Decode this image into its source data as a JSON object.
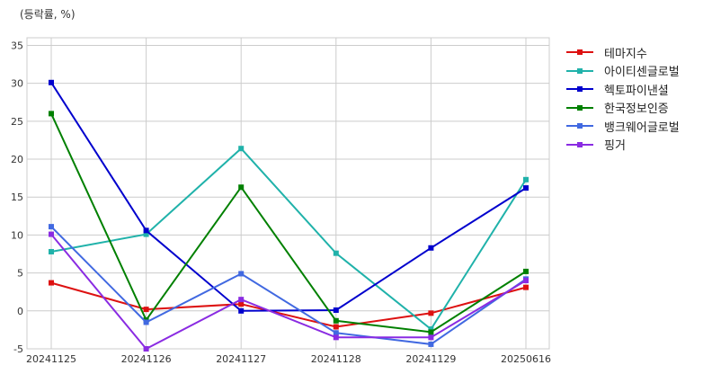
{
  "chart_data": {
    "type": "line",
    "title": "",
    "ylabel": "(등락률, %)",
    "xlabel": "",
    "categories": [
      "20241125",
      "20241126",
      "20241127",
      "20241128",
      "20241129",
      "20250616"
    ],
    "ylim": [
      -5,
      36
    ],
    "yticks": [
      -5,
      0,
      5,
      10,
      15,
      20,
      25,
      30,
      35
    ],
    "grid": true,
    "legend_position": "right",
    "series": [
      {
        "name": "테마지수",
        "color": "#dd1111",
        "values": [
          3.7,
          0.2,
          0.9,
          -2.1,
          -0.3,
          3.1
        ]
      },
      {
        "name": "아이티센글로벌",
        "color": "#20b2aa",
        "values": [
          7.8,
          10.1,
          21.4,
          7.6,
          -2.4,
          17.3
        ]
      },
      {
        "name": "헥토파이낸셜",
        "color": "#0000cd",
        "values": [
          30.1,
          10.6,
          0.0,
          0.1,
          8.3,
          16.2
        ]
      },
      {
        "name": "한국정보인증",
        "color": "#008000",
        "values": [
          26.0,
          -1.2,
          16.3,
          -1.3,
          -2.8,
          5.2
        ]
      },
      {
        "name": "뱅크웨어글로벌",
        "color": "#4169e1",
        "values": [
          11.1,
          -1.5,
          4.9,
          -2.9,
          -4.4,
          4.2
        ]
      },
      {
        "name": "핑거",
        "color": "#8a2be2",
        "values": [
          10.1,
          -5.0,
          1.5,
          -3.5,
          -3.5,
          4.0
        ]
      }
    ]
  }
}
